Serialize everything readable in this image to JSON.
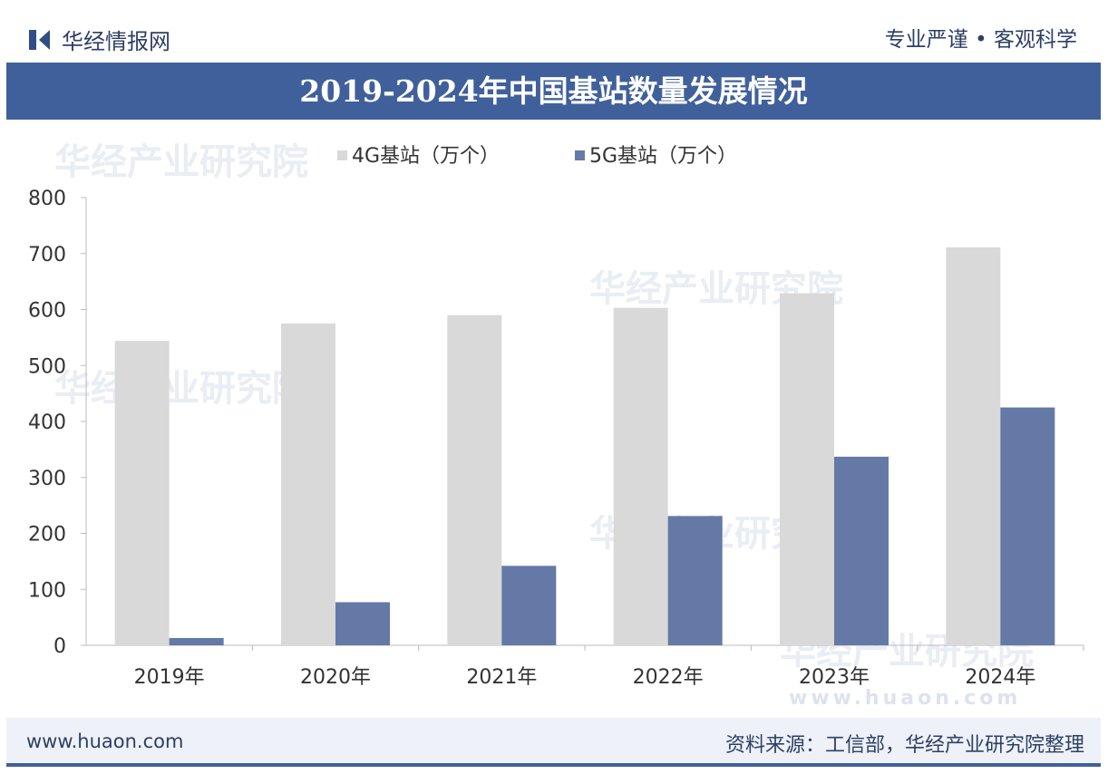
{
  "header": {
    "brand": "华经情报网",
    "slogan": "专业严谨 • 客观科学"
  },
  "footer": {
    "website": "www.huaon.com",
    "source": "资料来源：工信部，华经产业研究院整理"
  },
  "watermark": {
    "text": "华经产业研究院",
    "url": "www.huaon.com"
  },
  "colors": {
    "banner": "#40609b",
    "series4g": "#d9d9d9",
    "series5g": "#6479a6"
  },
  "chart_data": {
    "type": "bar",
    "title": "2019-2024年中国基站数量发展情况",
    "categories": [
      "2019年",
      "2020年",
      "2021年",
      "2022年",
      "2023年",
      "2024年"
    ],
    "series": [
      {
        "name": "4G基站（万个）",
        "values": [
          544,
          575,
          590,
          603,
          629,
          711
        ]
      },
      {
        "name": "5G基站（万个）",
        "values": [
          13,
          77,
          142,
          231,
          337,
          425
        ]
      }
    ],
    "ylim": [
      0,
      800
    ],
    "yticks": [
      "0",
      "100",
      "200",
      "300",
      "400",
      "500",
      "600",
      "700",
      "800"
    ],
    "xlabel": "",
    "ylabel": "",
    "legend": "top-center",
    "grid": false
  }
}
